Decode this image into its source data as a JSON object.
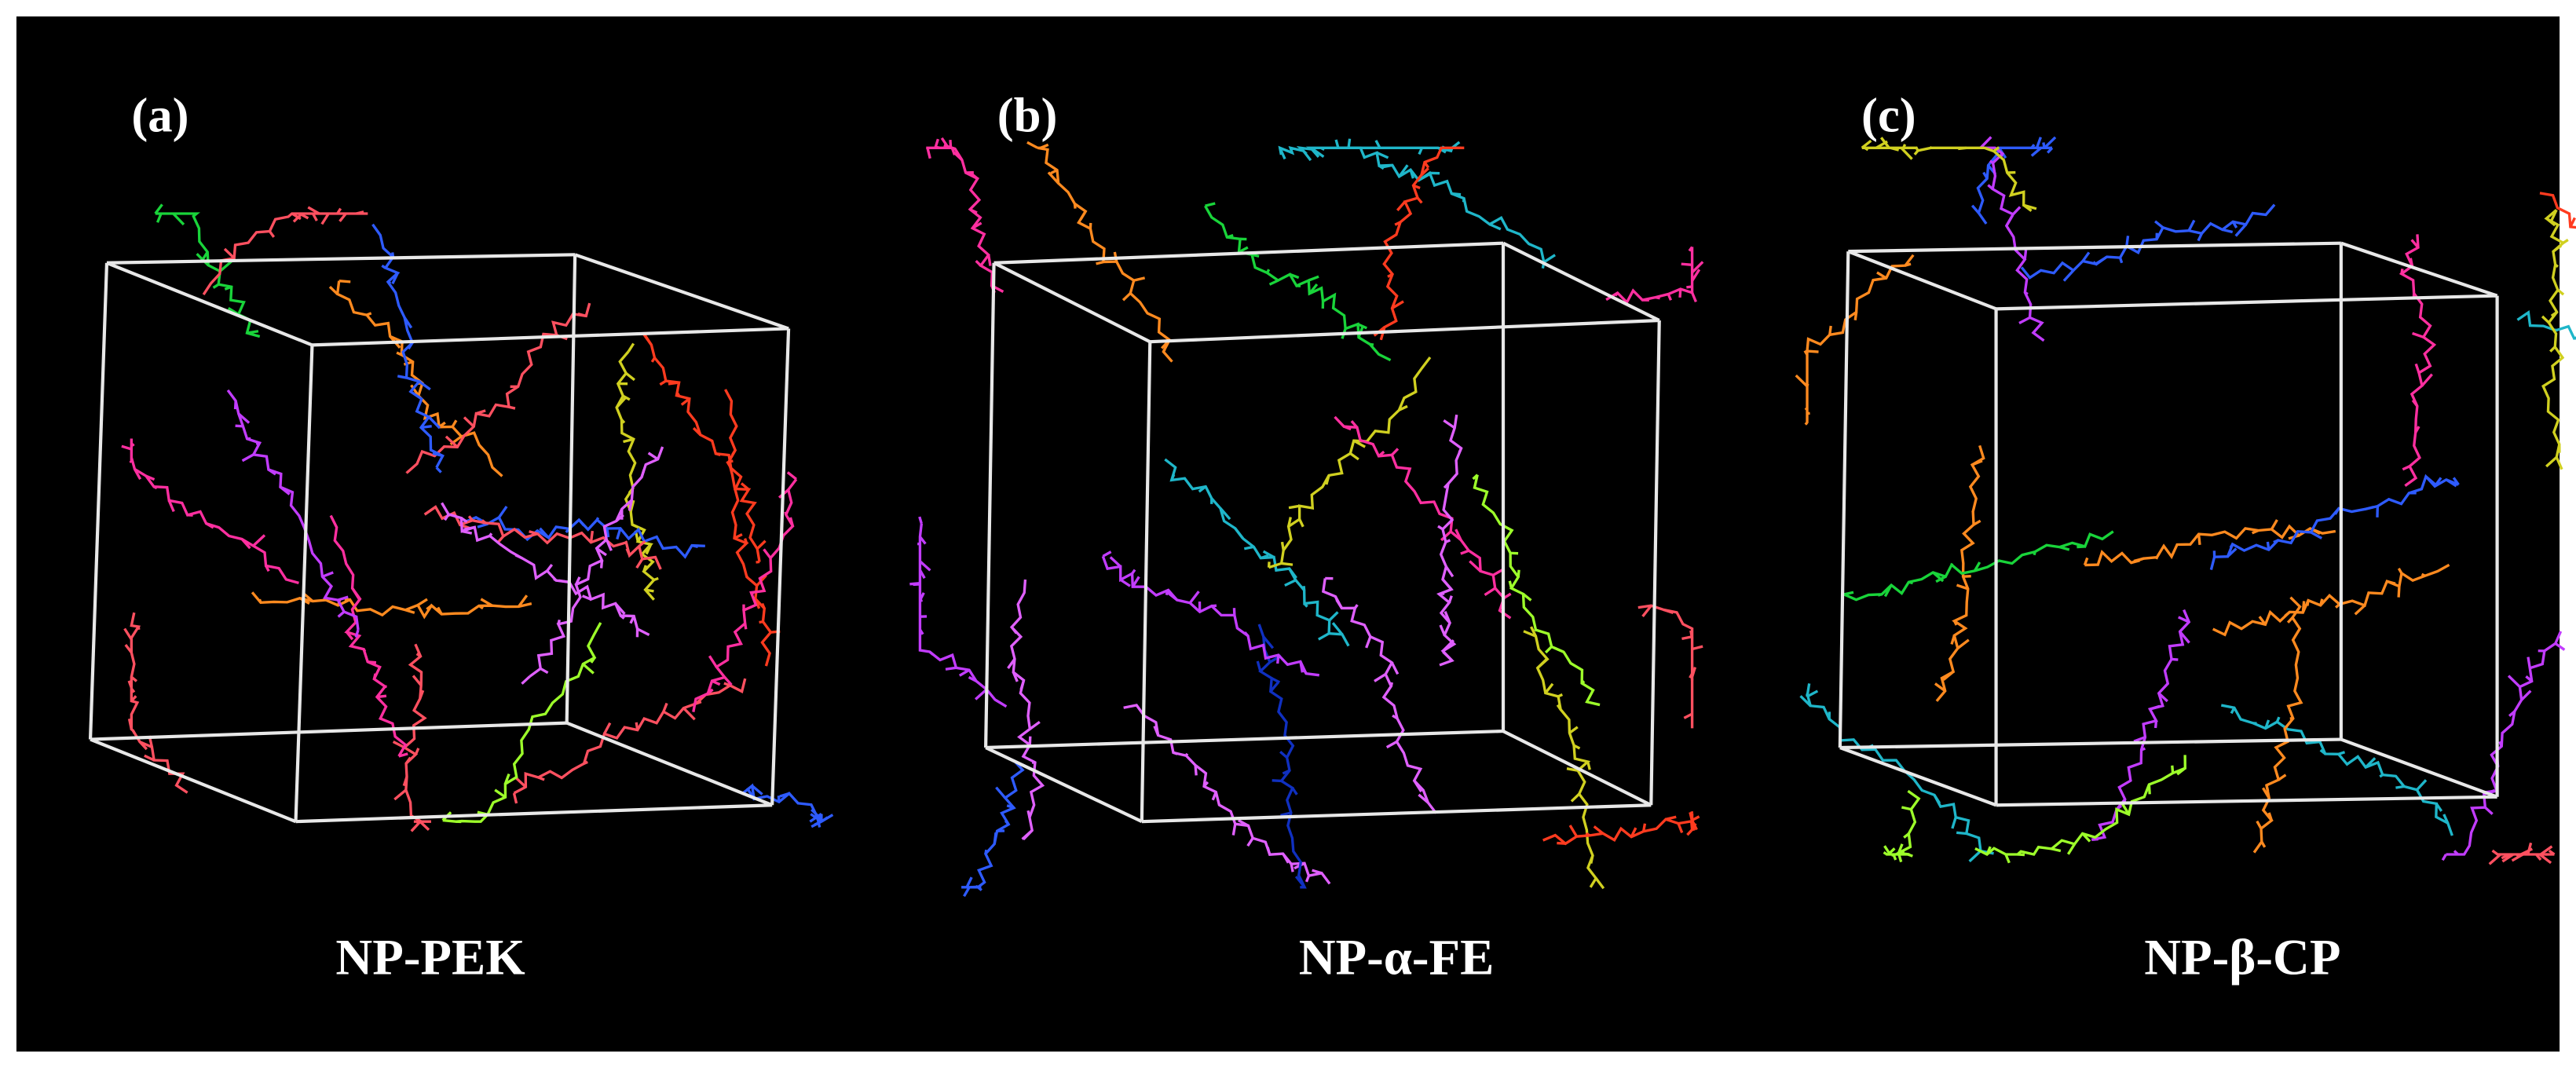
{
  "panels": [
    {
      "label": "(a)",
      "name": "NP-PEK"
    },
    {
      "label": "(b)",
      "name": "NP-α-FE"
    },
    {
      "label": "(c)",
      "name": "NP-β-CP"
    }
  ]
}
